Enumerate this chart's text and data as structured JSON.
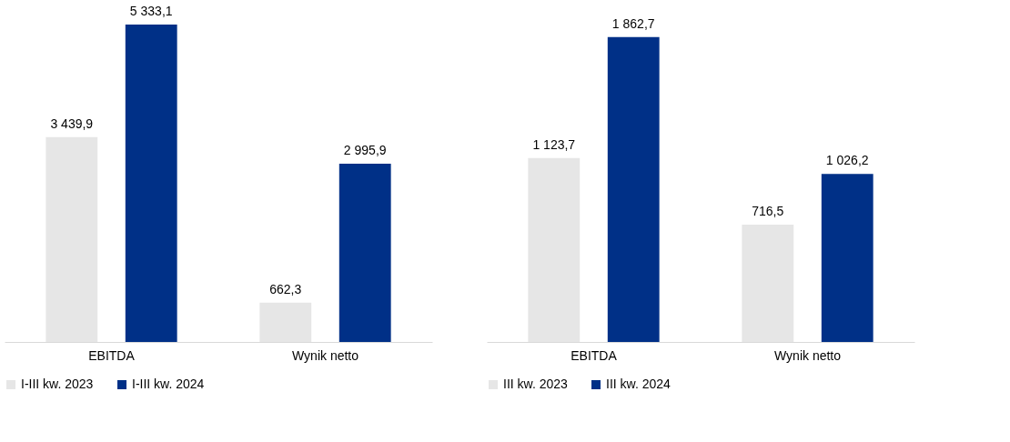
{
  "chart_data": [
    {
      "type": "bar",
      "categories": [
        "EBITDA",
        "Wynik netto"
      ],
      "legend": "bottom",
      "series": [
        {
          "name": "I-III kw. 2023",
          "color": "#e6e6e6",
          "values": [
            3439.9,
            662.3
          ],
          "value_labels": [
            "3 439,9",
            "662,3"
          ]
        },
        {
          "name": "I-III kw. 2024",
          "color": "#003087",
          "values": [
            5333.1,
            2995.9
          ],
          "value_labels": [
            "5 333,1",
            "2 995,9"
          ]
        }
      ]
    },
    {
      "type": "bar",
      "categories": [
        "EBITDA",
        "Wynik netto"
      ],
      "legend": "bottom",
      "series": [
        {
          "name": "III kw. 2023",
          "color": "#e6e6e6",
          "values": [
            1123.7,
            716.5
          ],
          "value_labels": [
            "1 123,7",
            "716,5"
          ]
        },
        {
          "name": "III kw. 2024",
          "color": "#003087",
          "values": [
            1862.7,
            1026.2
          ],
          "value_labels": [
            "1 862,7",
            "1 026,2"
          ]
        }
      ]
    }
  ]
}
